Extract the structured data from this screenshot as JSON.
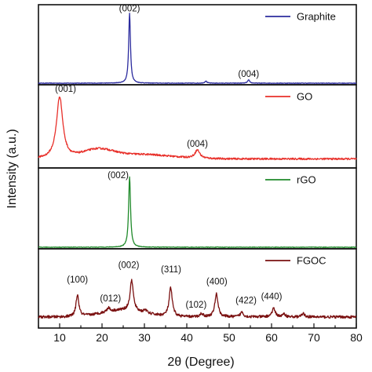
{
  "chart_data": {
    "type": "line",
    "xlabel": "2θ (Degree)",
    "ylabel": "Intensity (a.u.)",
    "xlim": [
      5,
      80
    ],
    "x_ticks": [
      10,
      20,
      30,
      40,
      50,
      60,
      70,
      80
    ],
    "x_tick_labels": [
      "10",
      "20",
      "30",
      "40",
      "50",
      "60",
      "70",
      "80"
    ],
    "grid": false,
    "legend_placement": "top-right of each panel",
    "series": [
      {
        "name": "Graphite",
        "color": "#2b2b9e",
        "baseline": 0.0,
        "ylim": [
          0,
          1.08
        ],
        "noise": 0.004,
        "peaks": [
          {
            "x": 26.5,
            "height": 1.0,
            "width": 0.25
          },
          {
            "x": 44.5,
            "height": 0.03,
            "width": 0.3
          },
          {
            "x": 54.6,
            "height": 0.045,
            "width": 0.3
          }
        ],
        "annotations": [
          {
            "text": "(002)",
            "x": 26.5,
            "y": 1.03
          },
          {
            "text": "(004)",
            "x": 54.6,
            "y": 0.09
          }
        ]
      },
      {
        "name": "GO",
        "color": "#e8302a",
        "baseline": 0.1,
        "ylim": [
          0,
          1.05
        ],
        "noise": 0.012,
        "humps": [
          {
            "x": 19,
            "height": 0.11,
            "width": 5
          },
          {
            "x": 29,
            "height": 0.06,
            "width": 10
          }
        ],
        "peaks": [
          {
            "x": 10.0,
            "height": 0.83,
            "width": 0.9
          },
          {
            "x": 42.5,
            "height": 0.11,
            "width": 0.7
          }
        ],
        "annotations": [
          {
            "text": "(001)",
            "x": 11.4,
            "y": 1.0
          },
          {
            "text": "(004)",
            "x": 42.5,
            "y": 0.26
          }
        ]
      },
      {
        "name": "rGO",
        "color": "#1f8a2a",
        "baseline": 0.0,
        "ylim": [
          0,
          1.08
        ],
        "noise": 0.004,
        "peaks": [
          {
            "x": 26.5,
            "height": 1.0,
            "width": 0.27
          }
        ],
        "annotations": [
          {
            "text": "(002)",
            "x": 23.8,
            "y": 0.98
          }
        ]
      },
      {
        "name": "FGOC",
        "color": "#7a1010",
        "baseline": 0.14,
        "ylim": [
          0,
          1.1
        ],
        "noise": 0.02,
        "humps": [
          {
            "x": 25,
            "height": 0.1,
            "width": 7
          }
        ],
        "peaks": [
          {
            "x": 14.2,
            "height": 0.32,
            "width": 0.4
          },
          {
            "x": 21.5,
            "height": 0.06,
            "width": 0.4
          },
          {
            "x": 27.0,
            "height": 0.45,
            "width": 0.45
          },
          {
            "x": 30.2,
            "height": 0.05,
            "width": 0.35
          },
          {
            "x": 36.2,
            "height": 0.42,
            "width": 0.45
          },
          {
            "x": 43.5,
            "height": 0.05,
            "width": 0.4
          },
          {
            "x": 47.0,
            "height": 0.34,
            "width": 0.45
          },
          {
            "x": 53.0,
            "height": 0.07,
            "width": 0.45
          },
          {
            "x": 60.5,
            "height": 0.12,
            "width": 0.5
          },
          {
            "x": 63.0,
            "height": 0.04,
            "width": 0.4
          },
          {
            "x": 67.5,
            "height": 0.05,
            "width": 0.4
          }
        ],
        "annotations": [
          {
            "text": "(100)",
            "x": 14.2,
            "y": 0.65
          },
          {
            "text": "(012)",
            "x": 22.0,
            "y": 0.37
          },
          {
            "text": "(002)",
            "x": 26.3,
            "y": 0.86
          },
          {
            "text": "(311)",
            "x": 36.3,
            "y": 0.8
          },
          {
            "text": "(102)",
            "x": 42.2,
            "y": 0.28
          },
          {
            "text": "(400)",
            "x": 47.1,
            "y": 0.62
          },
          {
            "text": "(422)",
            "x": 54.0,
            "y": 0.34
          },
          {
            "text": "(440)",
            "x": 60.0,
            "y": 0.4
          }
        ]
      }
    ]
  }
}
